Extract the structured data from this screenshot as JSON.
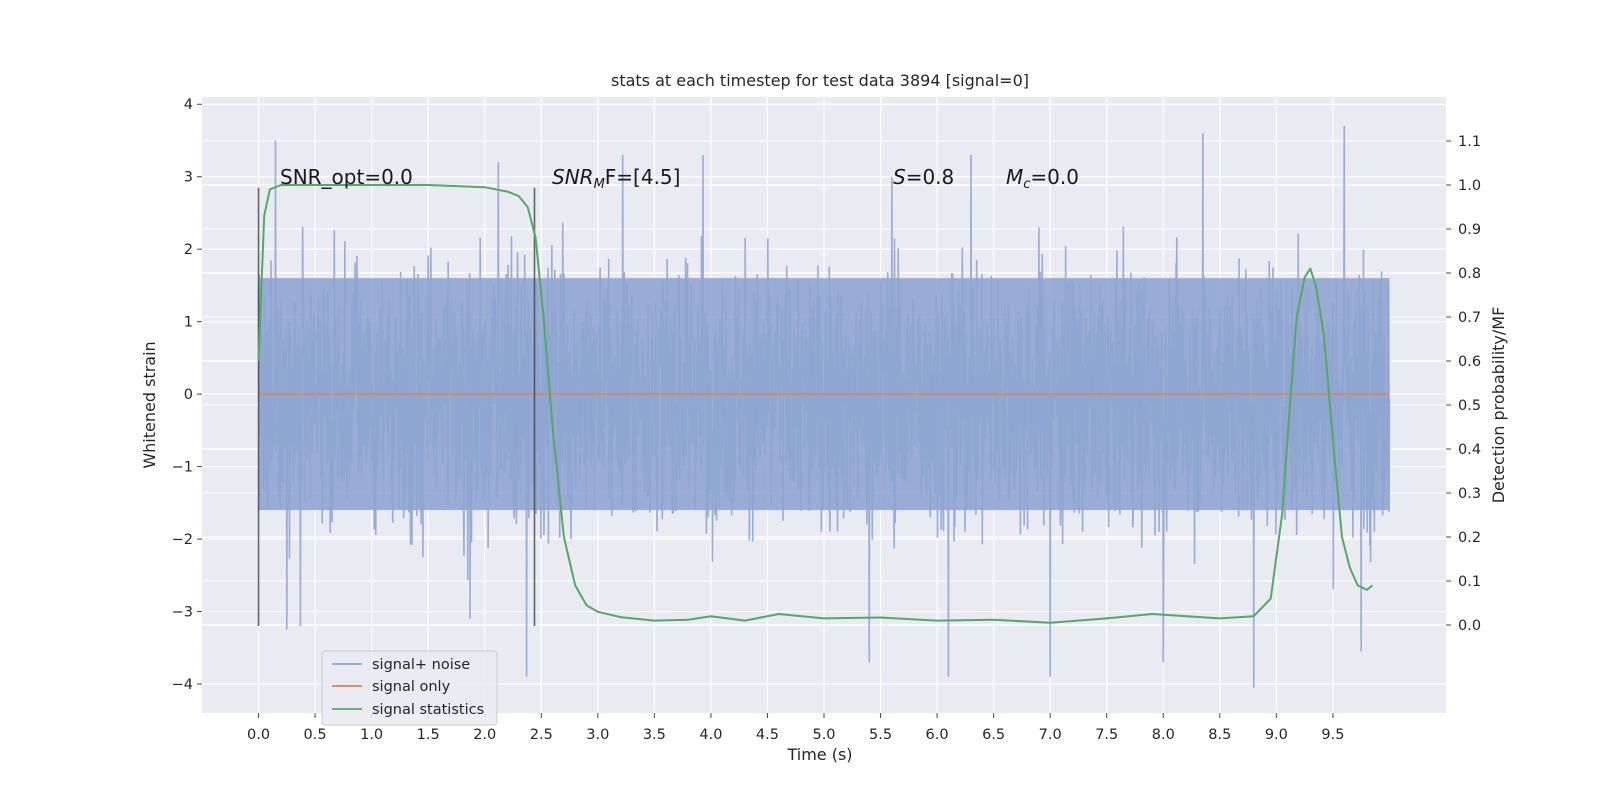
{
  "chart_data": {
    "type": "line",
    "title": "stats at each timestep for test data 3894 [signal=0]",
    "xlabel": "Time (s)",
    "ylabel_left": "Whitened strain",
    "ylabel_right": "Detection probability/MF",
    "xlim": [
      -0.5,
      10.5
    ],
    "ylim_left": [
      -4.4,
      4.1
    ],
    "ylim_right": [
      -0.2,
      1.2
    ],
    "x_ticks": [
      "0.0",
      "0.5",
      "1.0",
      "1.5",
      "2.0",
      "2.5",
      "3.0",
      "3.5",
      "4.0",
      "4.5",
      "5.0",
      "5.5",
      "6.0",
      "6.5",
      "7.0",
      "7.5",
      "8.0",
      "8.5",
      "9.0",
      "9.5"
    ],
    "y_ticks_left": [
      "4",
      "3",
      "2",
      "1",
      "0",
      "−1",
      "−2",
      "−3",
      "−4"
    ],
    "y_ticks_right": [
      "1.1",
      "1.0",
      "0.9",
      "0.8",
      "0.7",
      "0.6",
      "0.5",
      "0.4",
      "0.3",
      "0.2",
      "0.1",
      "0.0"
    ],
    "grid": true,
    "legend_position": "lower-left",
    "annotations": {
      "snr_opt": "SNR_opt=0.0",
      "snr_mf_main": "SNR",
      "snr_mf_sub": "M",
      "snr_mf_rest": "F=[4.5]",
      "s_main": "S",
      "s_rest": "=0.8",
      "mc_main": "M",
      "mc_sub": "c",
      "mc_rest": "=0.0"
    },
    "vertical_markers_x": [
      0.0,
      2.44
    ],
    "series": [
      {
        "name": "signal+ noise",
        "color": "#8fa5d1",
        "axis": "left",
        "duration": 10.0,
        "core_amplitude": 1.6,
        "peaks": [
          {
            "x": 0.15,
            "y": 3.5
          },
          {
            "x": 0.37,
            "y": -3.2
          },
          {
            "x": 0.25,
            "y": -3.25
          },
          {
            "x": 1.87,
            "y": -3.1
          },
          {
            "x": 2.12,
            "y": 3.2
          },
          {
            "x": 2.37,
            "y": -3.9
          },
          {
            "x": 3.22,
            "y": 3.3
          },
          {
            "x": 3.93,
            "y": 3.3
          },
          {
            "x": 5.4,
            "y": -3.7
          },
          {
            "x": 6.1,
            "y": -3.9
          },
          {
            "x": 7.0,
            "y": -3.9
          },
          {
            "x": 8.0,
            "y": -3.7
          },
          {
            "x": 8.35,
            "y": 3.6
          },
          {
            "x": 8.8,
            "y": -4.05
          },
          {
            "x": 9.6,
            "y": 3.7
          },
          {
            "x": 9.75,
            "y": -3.55
          },
          {
            "x": 6.3,
            "y": 3.3
          },
          {
            "x": 5.6,
            "y": 3.0
          }
        ]
      },
      {
        "name": "signal only",
        "color": "#dd8452",
        "axis": "left",
        "x": [
          0.0,
          10.0
        ],
        "y": [
          0.0,
          0.0
        ]
      },
      {
        "name": "signal statistics",
        "color": "#55a868",
        "axis": "right",
        "x": [
          0.0,
          0.05,
          0.1,
          0.15,
          0.2,
          0.3,
          0.5,
          1.0,
          1.5,
          2.0,
          2.2,
          2.3,
          2.38,
          2.45,
          2.52,
          2.6,
          2.7,
          2.8,
          2.9,
          3.0,
          3.2,
          3.5,
          3.8,
          4.0,
          4.3,
          4.6,
          5.0,
          5.5,
          6.0,
          6.5,
          7.0,
          7.5,
          7.9,
          8.5,
          8.8,
          8.95,
          9.05,
          9.12,
          9.18,
          9.25,
          9.3,
          9.35,
          9.42,
          9.5,
          9.58,
          9.65,
          9.72,
          9.8,
          9.85
        ],
        "y": [
          0.6,
          0.93,
          0.99,
          0.995,
          1.0,
          1.0,
          1.0,
          1.0,
          1.0,
          0.995,
          0.985,
          0.975,
          0.95,
          0.88,
          0.7,
          0.45,
          0.2,
          0.09,
          0.045,
          0.03,
          0.018,
          0.01,
          0.012,
          0.02,
          0.01,
          0.025,
          0.015,
          0.017,
          0.01,
          0.012,
          0.005,
          0.015,
          0.025,
          0.015,
          0.02,
          0.06,
          0.25,
          0.5,
          0.7,
          0.79,
          0.81,
          0.77,
          0.66,
          0.42,
          0.2,
          0.13,
          0.09,
          0.08,
          0.09
        ]
      }
    ]
  }
}
